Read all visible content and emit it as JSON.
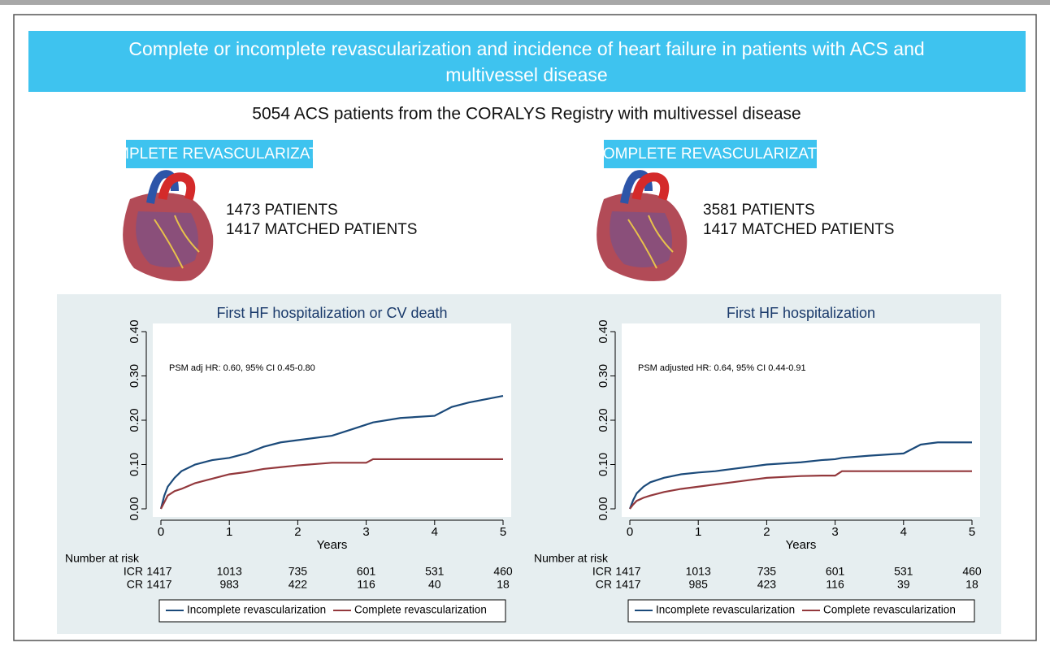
{
  "header": {
    "title_lines": [
      "Complete or incomplete revascularization and incidence of heart failure in patients with ACS and",
      "multivessel disease"
    ],
    "subtitle": "5054 ACS patients from the CORALYS Registry with multivessel disease"
  },
  "groups": [
    {
      "label": "COMPLETE REVASCULARIZATION",
      "lines": [
        "1473 PATIENTS",
        "1417 MATCHED PATIENTS"
      ]
    },
    {
      "label": "INCOMPLETE REVASCULARIZATION",
      "lines": [
        "3581 PATIENTS",
        "1417 MATCHED PATIENTS"
      ]
    }
  ],
  "chart_data": [
    {
      "type": "line",
      "title": "First HF hospitalization or CV death",
      "annotation": "PSM adj HR: 0.60, 95% CI 0.45-0.80",
      "xlabel": "Years",
      "x": [
        0,
        0.05,
        0.1,
        0.2,
        0.3,
        0.5,
        0.75,
        1,
        1.25,
        1.5,
        1.75,
        2,
        2.5,
        2.8,
        3,
        3.1,
        3.5,
        4,
        4.25,
        4.5,
        5
      ],
      "series": [
        {
          "name": "Incomplete revascularization",
          "color": "#1b4a7a",
          "values": [
            0,
            0.03,
            0.05,
            0.07,
            0.085,
            0.1,
            0.11,
            0.115,
            0.125,
            0.14,
            0.15,
            0.155,
            0.165,
            0.18,
            0.19,
            0.195,
            0.205,
            0.21,
            0.23,
            0.24,
            0.255
          ]
        },
        {
          "name": "Complete revascularization",
          "color": "#93383c",
          "values": [
            0,
            0.015,
            0.03,
            0.04,
            0.045,
            0.058,
            0.068,
            0.078,
            0.083,
            0.09,
            0.094,
            0.098,
            0.104,
            0.104,
            0.104,
            0.112,
            0.112,
            0.112,
            0.112,
            0.112,
            0.112
          ]
        }
      ],
      "xlim": [
        0,
        5
      ],
      "xticks": [
        0,
        1,
        2,
        3,
        4,
        5
      ],
      "ylim": [
        0,
        0.4
      ],
      "yticks": [
        {
          "value": 0,
          "label": "0.00"
        },
        {
          "value": 0.1,
          "label": "0.10"
        },
        {
          "value": 0.2,
          "label": "0.20"
        },
        {
          "value": 0.3,
          "label": "0.30"
        },
        {
          "value": 0.4,
          "label": "0.40"
        }
      ],
      "grid": false,
      "legend": "bottom",
      "risk_table": {
        "title": "Number at risk",
        "rows": [
          {
            "label": "ICR",
            "values": [
              1417,
              1013,
              735,
              601,
              531,
              460
            ]
          },
          {
            "label": "CR",
            "values": [
              1417,
              983,
              422,
              116,
              40,
              18
            ]
          }
        ]
      }
    },
    {
      "type": "line",
      "title": "First HF hospitalization",
      "annotation": "PSM adjusted HR: 0.64, 95% CI 0.44-0.91",
      "xlabel": "Years",
      "x": [
        0,
        0.05,
        0.1,
        0.2,
        0.3,
        0.5,
        0.75,
        1,
        1.25,
        1.5,
        1.75,
        2,
        2.5,
        2.8,
        3,
        3.1,
        3.5,
        4,
        4.25,
        4.5,
        5
      ],
      "series": [
        {
          "name": "Incomplete revascularization",
          "color": "#1b4a7a",
          "values": [
            0,
            0.02,
            0.035,
            0.05,
            0.06,
            0.07,
            0.078,
            0.082,
            0.085,
            0.09,
            0.095,
            0.1,
            0.105,
            0.11,
            0.112,
            0.115,
            0.12,
            0.125,
            0.145,
            0.15,
            0.15
          ]
        },
        {
          "name": "Complete revascularization",
          "color": "#93383c",
          "values": [
            0,
            0.01,
            0.018,
            0.025,
            0.03,
            0.038,
            0.045,
            0.05,
            0.055,
            0.06,
            0.065,
            0.07,
            0.074,
            0.075,
            0.075,
            0.085,
            0.085,
            0.085,
            0.085,
            0.085,
            0.085
          ]
        }
      ],
      "xlim": [
        0,
        5
      ],
      "xticks": [
        0,
        1,
        2,
        3,
        4,
        5
      ],
      "ylim": [
        0,
        0.4
      ],
      "yticks": [
        {
          "value": 0,
          "label": "0.00"
        },
        {
          "value": 0.1,
          "label": "0.10"
        },
        {
          "value": 0.2,
          "label": "0.20"
        },
        {
          "value": 0.3,
          "label": "0.30"
        },
        {
          "value": 0.4,
          "label": "0.40"
        }
      ],
      "grid": false,
      "legend": "bottom",
      "risk_table": {
        "title": "Number at risk",
        "rows": [
          {
            "label": "ICR",
            "values": [
              1417,
              1013,
              735,
              601,
              531,
              460
            ]
          },
          {
            "label": "CR",
            "values": [
              1417,
              985,
              423,
              116,
              39,
              18
            ]
          }
        ]
      }
    }
  ]
}
